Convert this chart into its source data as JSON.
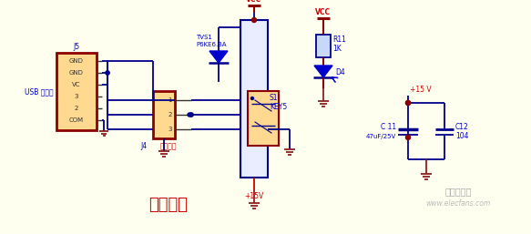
{
  "bg_color": "#FFFFF0",
  "wire_color": "#00008B",
  "comp_border_red": "#8B0000",
  "comp_fill_yellow": "#FFD98F",
  "comp_fill_blue_light": "#C8D8F8",
  "text_blue": "#0000CD",
  "text_red": "#CC0000",
  "text_dark": "#333333",
  "ground_color": "#8B2020",
  "vcc_bar_color": "#8B0000",
  "title_text": "电源输入",
  "watermark_text": "电子发烧友",
  "watermark_url": "www.elecfans.com"
}
